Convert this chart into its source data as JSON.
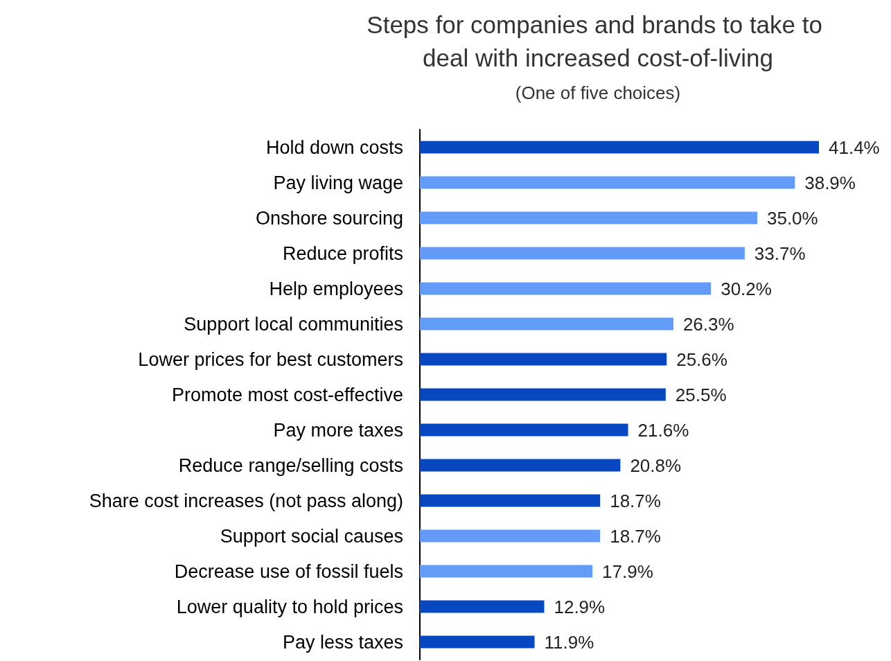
{
  "chart_data": {
    "type": "bar",
    "title": "Steps for companies and brands to take to deal with increased cost-of-living",
    "subtitle": "(One of five choices)",
    "categories": [
      "Hold down costs",
      "Pay living wage",
      "Onshore sourcing",
      "Reduce profits",
      "Help employees",
      "Support local communities",
      "Lower prices for best customers",
      "Promote most cost-effective",
      "Pay more taxes",
      "Reduce range/selling costs",
      "Share cost increases (not pass along)",
      "Support social causes",
      "Decrease use of fossil fuels",
      "Lower quality to hold prices",
      "Pay less taxes"
    ],
    "values": [
      41.4,
      38.9,
      35.0,
      33.7,
      30.2,
      26.3,
      25.6,
      25.5,
      21.6,
      20.8,
      18.7,
      18.7,
      17.9,
      12.9,
      11.9
    ],
    "value_labels": [
      "41.4%",
      "38.9%",
      "35.0%",
      "33.7%",
      "30.2%",
      "26.3%",
      "25.6%",
      "25.5%",
      "21.6%",
      "20.8%",
      "18.7%",
      "18.7%",
      "17.9%",
      "12.9%",
      "11.9%"
    ],
    "colors": [
      "#0747c0",
      "#629cf8",
      "#629cf8",
      "#629cf8",
      "#629cf8",
      "#629cf8",
      "#0747c0",
      "#0747c0",
      "#0747c0",
      "#0747c0",
      "#0747c0",
      "#629cf8",
      "#629cf8",
      "#0747c0",
      "#0747c0"
    ],
    "orientation": "horizontal"
  }
}
